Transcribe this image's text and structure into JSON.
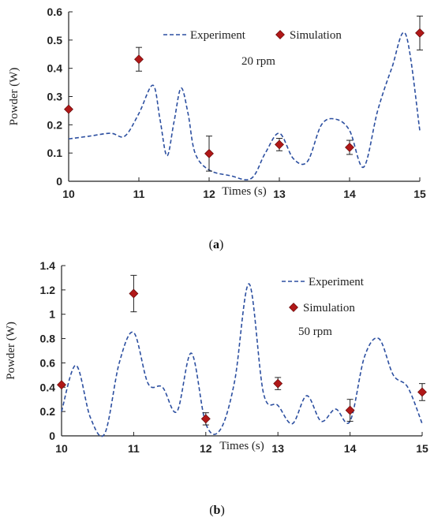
{
  "chart_data": [
    {
      "type": "line",
      "caption_letter": "a",
      "annotation": "20 rpm",
      "xlabel": "Times (s)",
      "ylabel": "Powder (W)",
      "xlim": [
        10,
        15
      ],
      "ylim": [
        0,
        0.6
      ],
      "xticks": [
        "10",
        "11",
        "12",
        "13",
        "14",
        "15"
      ],
      "yticks": [
        "0",
        "0.1",
        "0.2",
        "0.3",
        "0.4",
        "0.5",
        "0.6"
      ],
      "legend": [
        "Experiment",
        "Simulation"
      ],
      "legend_position": "top",
      "grid": false,
      "series": [
        {
          "name": "Experiment",
          "style": "dashed",
          "color": "#2c4fa0",
          "x": [
            10.0,
            10.3,
            10.6,
            10.8,
            11.0,
            11.2,
            11.3,
            11.4,
            11.5,
            11.6,
            11.7,
            11.8,
            12.0,
            12.3,
            12.6,
            12.8,
            13.0,
            13.2,
            13.4,
            13.6,
            13.8,
            14.0,
            14.2,
            14.4,
            14.6,
            14.8,
            15.0
          ],
          "y": [
            0.15,
            0.16,
            0.17,
            0.16,
            0.24,
            0.34,
            0.22,
            0.09,
            0.21,
            0.33,
            0.24,
            0.1,
            0.04,
            0.02,
            0.01,
            0.1,
            0.17,
            0.08,
            0.07,
            0.2,
            0.22,
            0.18,
            0.05,
            0.25,
            0.4,
            0.52,
            0.18
          ]
        },
        {
          "name": "Simulation",
          "style": "marker",
          "color": "#b01818",
          "x": [
            10,
            11,
            12,
            13,
            14,
            15
          ],
          "y": [
            0.255,
            0.432,
            0.098,
            0.13,
            0.12,
            0.525
          ],
          "error": [
            0,
            0.042,
            0.062,
            0.022,
            0.025,
            0.06
          ]
        }
      ]
    },
    {
      "type": "line",
      "caption_letter": "b",
      "annotation": "50 rpm",
      "xlabel": "Times (s)",
      "ylabel": "Powder (W)",
      "xlim": [
        10,
        15
      ],
      "ylim": [
        0,
        1.4
      ],
      "xticks": [
        "10",
        "11",
        "12",
        "13",
        "14",
        "15"
      ],
      "yticks": [
        "0",
        "0.2",
        "0.4",
        "0.6",
        "0.8",
        "1",
        "1.2",
        "1.4"
      ],
      "legend": [
        "Experiment",
        "Simulation"
      ],
      "legend_position": "top-right",
      "grid": false,
      "series": [
        {
          "name": "Experiment",
          "style": "dashed",
          "color": "#2c4fa0",
          "x": [
            10.0,
            10.2,
            10.4,
            10.6,
            10.8,
            11.0,
            11.2,
            11.4,
            11.6,
            11.8,
            12.0,
            12.2,
            12.4,
            12.6,
            12.8,
            13.0,
            13.2,
            13.4,
            13.6,
            13.8,
            14.0,
            14.2,
            14.4,
            14.6,
            14.8,
            15.0
          ],
          "y": [
            0.2,
            0.58,
            0.15,
            0.02,
            0.6,
            0.85,
            0.43,
            0.4,
            0.2,
            0.68,
            0.1,
            0.05,
            0.45,
            1.25,
            0.35,
            0.25,
            0.1,
            0.33,
            0.12,
            0.22,
            0.12,
            0.65,
            0.8,
            0.5,
            0.4,
            0.1
          ]
        },
        {
          "name": "Simulation",
          "style": "marker",
          "color": "#b01818",
          "x": [
            10,
            11,
            12,
            13,
            14,
            15
          ],
          "y": [
            0.42,
            1.17,
            0.14,
            0.43,
            0.21,
            0.36
          ],
          "error": [
            0,
            0.15,
            0.05,
            0.05,
            0.09,
            0.07
          ]
        }
      ]
    }
  ]
}
